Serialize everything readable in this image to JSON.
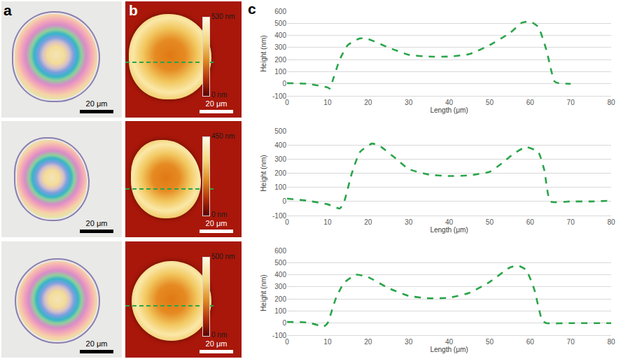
{
  "panel_labels": [
    "a",
    "b",
    "c"
  ],
  "optical_images": [
    {
      "scale_bar": "20 μm"
    },
    {
      "scale_bar": "20 μm"
    },
    {
      "scale_bar": "20 μm"
    }
  ],
  "afm_images": [
    {
      "scale_bar": "20 μm",
      "colorbar": {
        "range": [
          0,
          530
        ],
        "ticks": [
          {
            "value": 0,
            "label": "0 nm"
          },
          {
            "value": 530,
            "label": "530 nm"
          }
        ]
      }
    },
    {
      "scale_bar": "20 μm",
      "colorbar": {
        "range": [
          0,
          450
        ],
        "ticks": [
          {
            "value": 0,
            "label": "0 nm"
          },
          {
            "value": 450,
            "label": "450 nm"
          }
        ]
      }
    },
    {
      "scale_bar": "20 μm",
      "colorbar": {
        "range": [
          0,
          500
        ],
        "ticks": [
          {
            "value": 0,
            "label": "0 nm"
          },
          {
            "value": 500,
            "label": "500 nm"
          }
        ]
      }
    }
  ],
  "chart_data": [
    {
      "type": "line",
      "x_label": "Length (μm)",
      "y_label": "Height (nm)",
      "x": [
        0,
        5,
        10,
        10.5,
        11,
        13,
        15,
        18,
        20,
        25,
        30,
        35,
        40,
        45,
        50,
        55,
        58,
        60,
        62,
        64,
        66,
        67,
        70
      ],
      "values": [
        5,
        0,
        -30,
        -40,
        0,
        200,
        320,
        375,
        370,
        300,
        240,
        225,
        225,
        245,
        320,
        420,
        505,
        515,
        470,
        280,
        20,
        5,
        0
      ],
      "color": "#2aa54a",
      "line_style": "dashed",
      "grid": true,
      "xlim": [
        0,
        80
      ],
      "xticks": [
        0,
        10,
        20,
        30,
        40,
        50,
        60,
        70,
        80
      ],
      "ylim": [
        -100,
        600
      ],
      "yticks": [
        -100,
        0,
        100,
        200,
        300,
        400,
        500,
        600
      ]
    },
    {
      "type": "line",
      "x_label": "Length (μm)",
      "y_label": "Height (nm)",
      "x": [
        0,
        5,
        10,
        13,
        14,
        16,
        18,
        21,
        23,
        27,
        30,
        35,
        40,
        45,
        50,
        53,
        56,
        59,
        62,
        63.5,
        65,
        70,
        75,
        80
      ],
      "values": [
        20,
        5,
        -20,
        -50,
        -10,
        200,
        350,
        410,
        390,
        300,
        230,
        190,
        180,
        185,
        210,
        270,
        340,
        385,
        350,
        220,
        0,
        0,
        0,
        5
      ],
      "color": "#2aa54a",
      "line_style": "dashed",
      "grid": true,
      "xlim": [
        0,
        80
      ],
      "xticks": [
        0,
        10,
        20,
        30,
        40,
        50,
        60,
        70,
        80
      ],
      "ylim": [
        -100,
        500
      ],
      "yticks": [
        -100,
        0,
        100,
        200,
        300,
        400,
        500
      ]
    },
    {
      "type": "line",
      "x_label": "Length (μm)",
      "y_label": "Height (nm)",
      "x": [
        0,
        5,
        8,
        9,
        10,
        12,
        14,
        17,
        20,
        25,
        30,
        35,
        40,
        45,
        50,
        55,
        57,
        59,
        61,
        63,
        64,
        70,
        80
      ],
      "values": [
        10,
        5,
        -20,
        -30,
        0,
        200,
        330,
        400,
        380,
        290,
        225,
        205,
        210,
        250,
        340,
        460,
        475,
        440,
        280,
        20,
        0,
        0,
        0
      ],
      "color": "#2aa54a",
      "line_style": "dashed",
      "grid": true,
      "xlim": [
        0,
        80
      ],
      "xticks": [
        0,
        10,
        20,
        30,
        40,
        50,
        60,
        70,
        80
      ],
      "ylim": [
        -100,
        600
      ],
      "yticks": [
        -100,
        0,
        100,
        200,
        300,
        400,
        500,
        600
      ]
    }
  ]
}
